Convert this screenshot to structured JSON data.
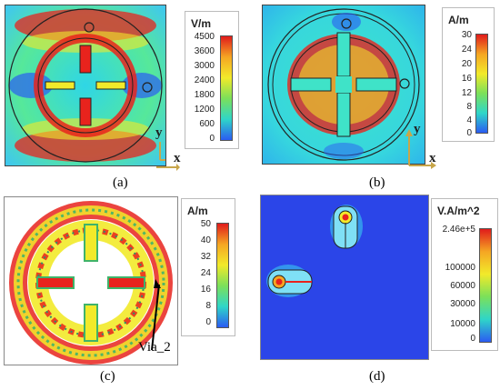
{
  "panels": [
    {
      "caption": "(a)",
      "unit": "V/m",
      "ticks": [
        "4500",
        "3600",
        "3000",
        "2400",
        "1800",
        "1200",
        "600",
        "0"
      ],
      "axis_y": "y",
      "axis_x": "x"
    },
    {
      "caption": "(b)",
      "unit": "A/m",
      "ticks": [
        "30",
        "24",
        "20",
        "16",
        "12",
        "8",
        "4",
        "0"
      ],
      "axis_y": "y",
      "axis_x": "x"
    },
    {
      "caption": "(c)",
      "unit": "A/m",
      "ticks": [
        "50",
        "40",
        "32",
        "24",
        "16",
        "8",
        "0"
      ],
      "annotation": "Via_2"
    },
    {
      "caption": "(d)",
      "unit": "V.A/m^2",
      "ticks": [
        "2.46e+5",
        "100000",
        "60000",
        "30000",
        "10000",
        "0"
      ]
    }
  ],
  "colors": {
    "field_low": "#2b5cf2",
    "field_mid": "#3fe3c8",
    "field_high": "#e8231d",
    "field_yellow": "#f2ea2a",
    "axis_arrow": "#c8a64a"
  }
}
